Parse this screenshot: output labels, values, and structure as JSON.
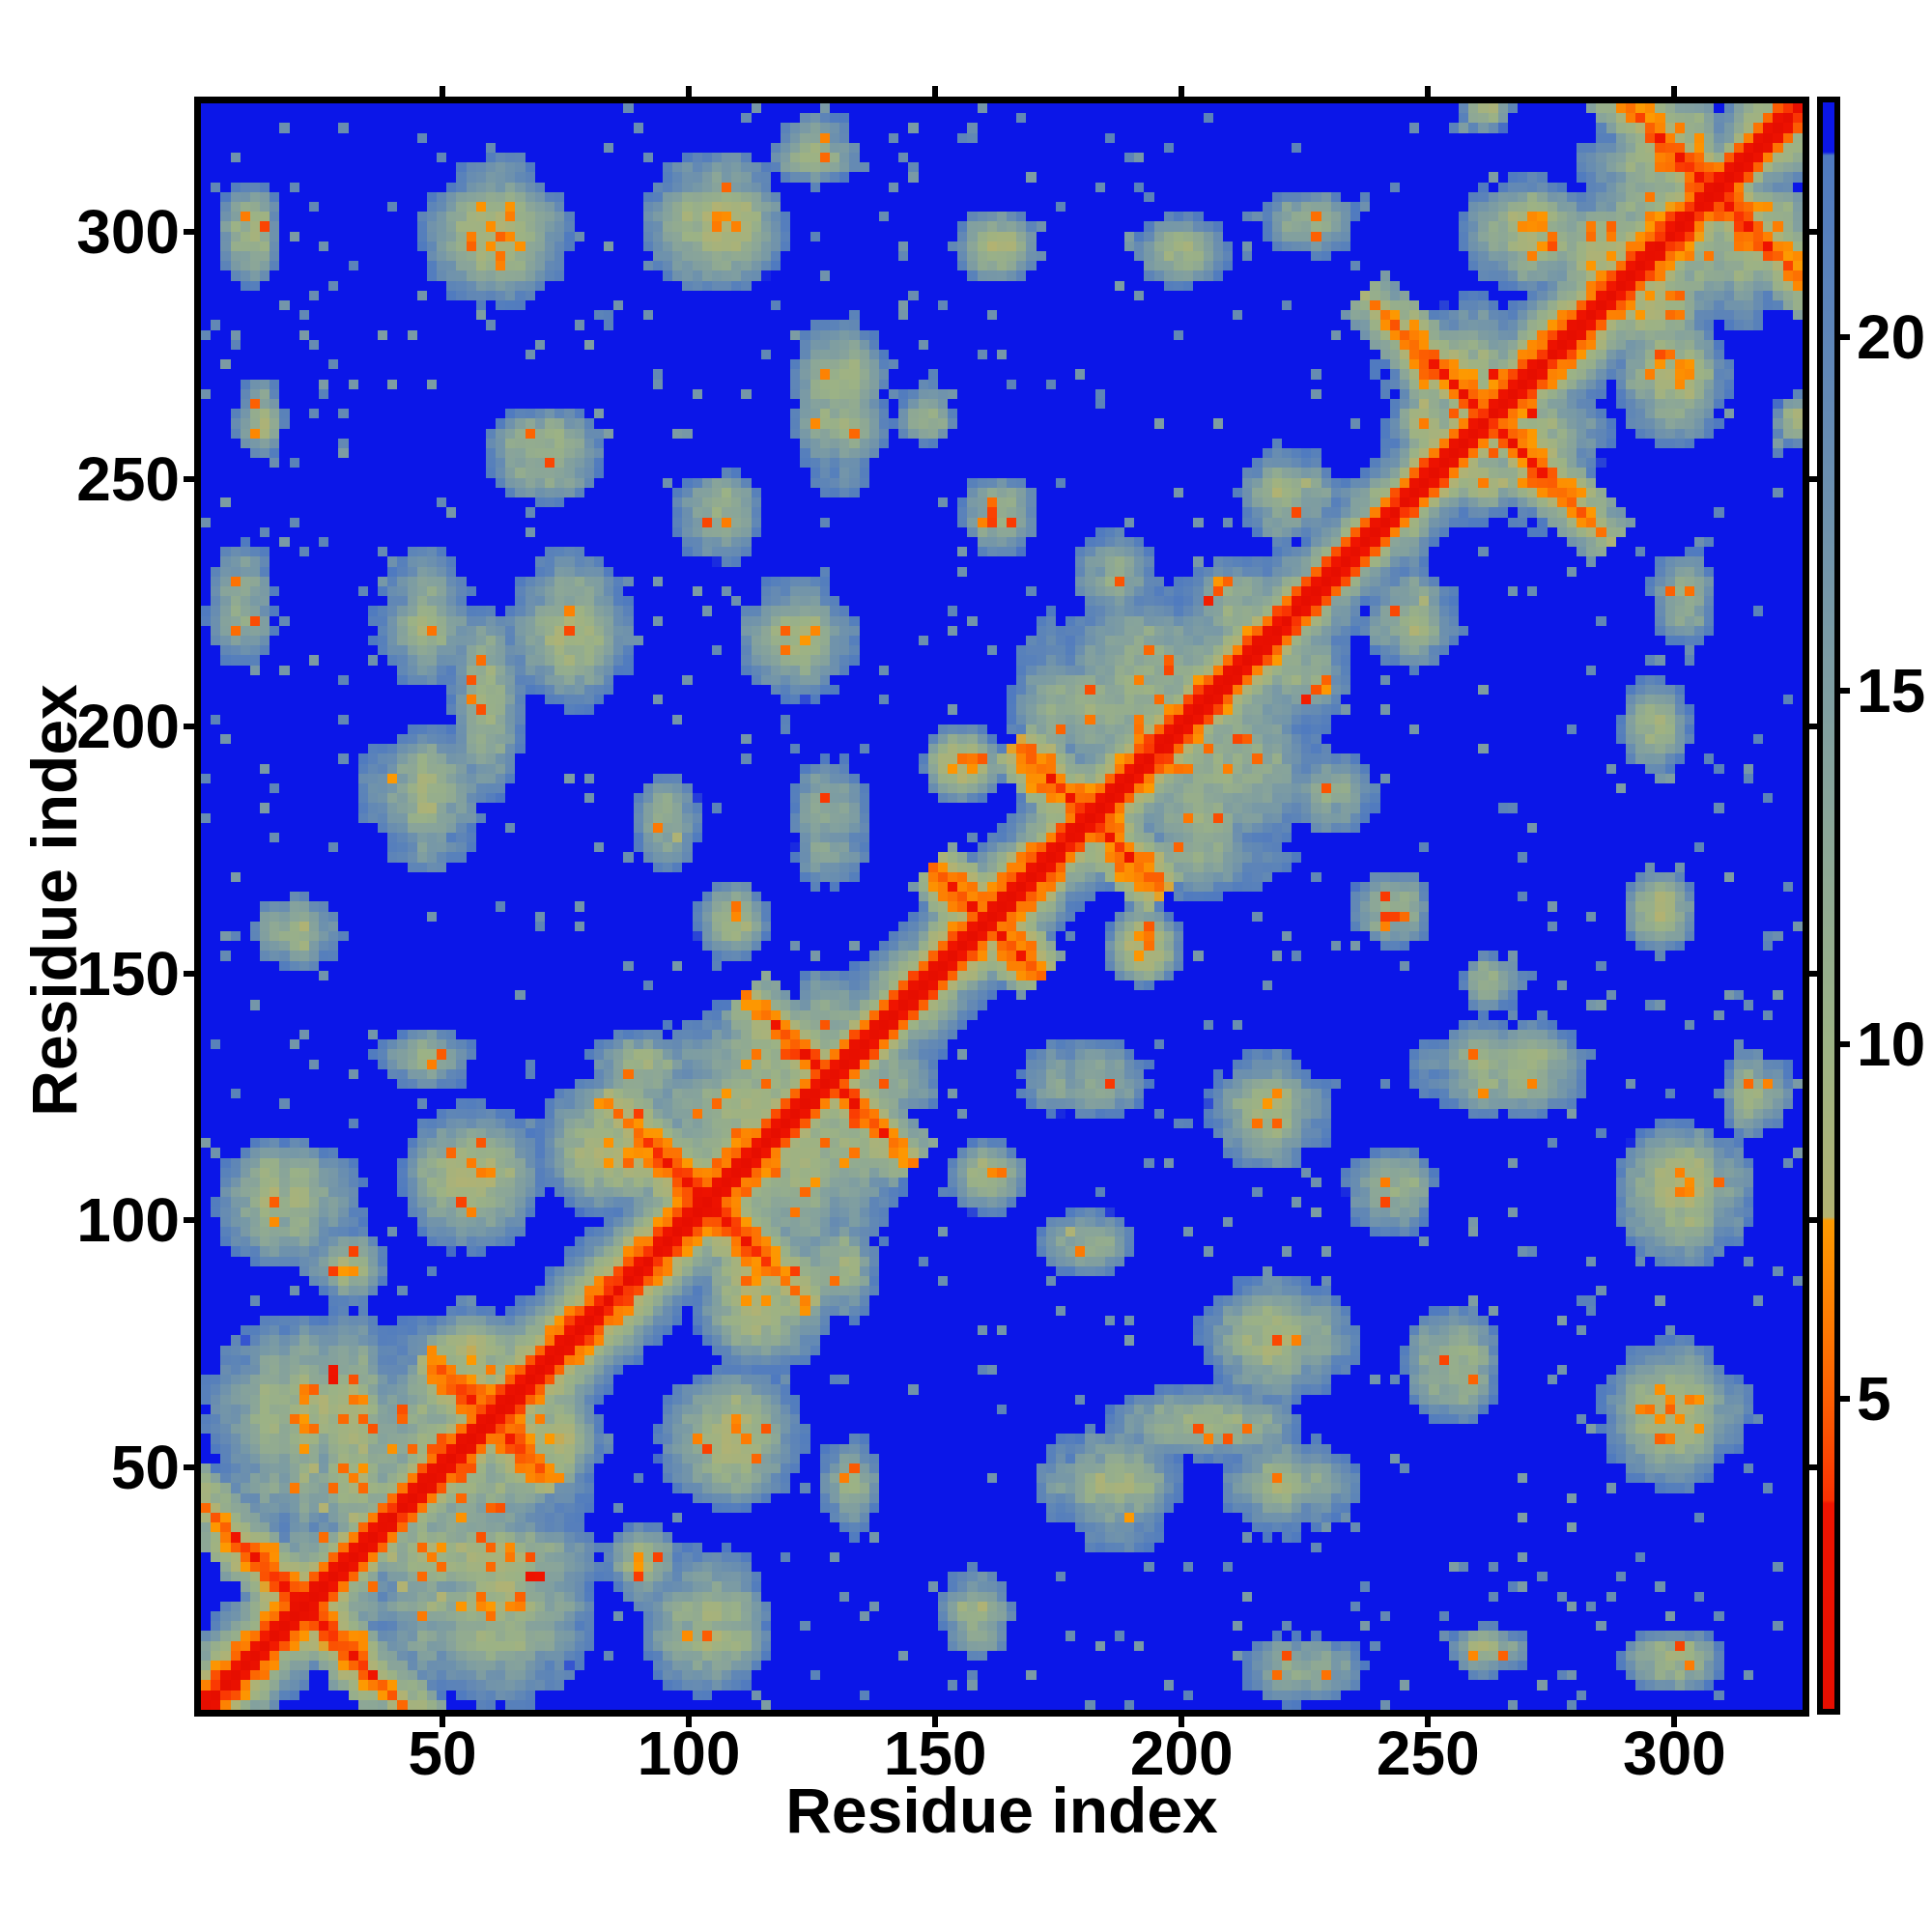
{
  "figure": {
    "background": "#ffffff",
    "kind": "protein residue-residue distance map"
  },
  "chart_data": {
    "type": "heatmap",
    "title": "",
    "xlabel": "Residue index",
    "ylabel": "Residue index",
    "x_range": [
      1,
      326
    ],
    "y_range": [
      1,
      326
    ],
    "x_ticks": [
      50,
      100,
      150,
      200,
      250,
      300
    ],
    "y_ticks": [
      50,
      100,
      150,
      200,
      250,
      300
    ],
    "grid": false,
    "legend_position": "right-colorbar",
    "n_residues": 326,
    "bin_residues": 2,
    "matrix_symmetric": true,
    "diagonal_value": 0,
    "distance_slope_per_residue": 1.3,
    "value_range": [
      0.6,
      23.3
    ],
    "colorbar_ticks": [
      5,
      10,
      15,
      20
    ],
    "palette_stops": [
      {
        "v": 23.3,
        "c": "#0b16e8"
      },
      {
        "v": 22.6,
        "c": "#0b16e8"
      },
      {
        "v": 22.55,
        "c": "#4f7ac0"
      },
      {
        "v": 19.0,
        "c": "#6389b4"
      },
      {
        "v": 16.0,
        "c": "#7899a6"
      },
      {
        "v": 13.0,
        "c": "#8ba698"
      },
      {
        "v": 10.0,
        "c": "#9cb285"
      },
      {
        "v": 7.55,
        "c": "#b2b272"
      },
      {
        "v": 7.5,
        "c": "#fd9a01"
      },
      {
        "v": 6.0,
        "c": "#fd7a02"
      },
      {
        "v": 4.5,
        "c": "#fb5102"
      },
      {
        "v": 3.55,
        "c": "#f93102"
      },
      {
        "v": 3.5,
        "c": "#f01400"
      },
      {
        "v": 0.6,
        "c": "#e60e00"
      }
    ],
    "noise_seed": 42,
    "hairpin_antidiagonal_streaks": [
      {
        "center": 21,
        "half_len": 26
      },
      {
        "center": 59,
        "half_len": 14
      },
      {
        "center": 103,
        "half_len": 22
      },
      {
        "center": 128,
        "half_len": 18
      },
      {
        "center": 160,
        "half_len": 12
      },
      {
        "center": 181,
        "half_len": 16
      },
      {
        "center": 262,
        "half_len": 26
      },
      {
        "center": 308,
        "half_len": 24
      }
    ],
    "contact_clusters": [
      {
        "x": 35,
        "y": 48,
        "rx": 34,
        "ry": 34,
        "d": 9.5
      },
      {
        "x": 25,
        "y": 60,
        "rx": 26,
        "ry": 22,
        "d": 8.5
      },
      {
        "x": 55,
        "y": 72,
        "rx": 12,
        "ry": 10,
        "d": 8.0
      },
      {
        "x": 30,
        "y": 90,
        "rx": 10,
        "ry": 8,
        "d": 9.5
      },
      {
        "x": 18,
        "y": 103,
        "rx": 16,
        "ry": 14,
        "d": 9.0
      },
      {
        "x": 55,
        "y": 108,
        "rx": 16,
        "ry": 16,
        "d": 9.0
      },
      {
        "x": 85,
        "y": 115,
        "rx": 18,
        "ry": 16,
        "d": 8.5
      },
      {
        "x": 112,
        "y": 120,
        "rx": 26,
        "ry": 26,
        "d": 10.0
      },
      {
        "x": 117,
        "y": 130,
        "rx": 14,
        "ry": 10,
        "d": 8.5
      },
      {
        "x": 45,
        "y": 132,
        "rx": 12,
        "ry": 7,
        "d": 10.0
      },
      {
        "x": 90,
        "y": 130,
        "rx": 12,
        "ry": 8,
        "d": 9.5
      },
      {
        "x": 128,
        "y": 142,
        "rx": 9,
        "ry": 9,
        "d": 9.0
      },
      {
        "x": 20,
        "y": 158,
        "rx": 10,
        "ry": 8,
        "d": 10.0
      },
      {
        "x": 108,
        "y": 160,
        "rx": 8,
        "ry": 8,
        "d": 10.0
      },
      {
        "x": 95,
        "y": 180,
        "rx": 8,
        "ry": 10,
        "d": 10.0
      },
      {
        "x": 128,
        "y": 180,
        "rx": 9,
        "ry": 14,
        "d": 10.0
      },
      {
        "x": 45,
        "y": 185,
        "rx": 14,
        "ry": 16,
        "d": 9.5
      },
      {
        "x": 155,
        "y": 192,
        "rx": 9,
        "ry": 9,
        "d": 7.5
      },
      {
        "x": 180,
        "y": 203,
        "rx": 16,
        "ry": 14,
        "d": 8.5
      },
      {
        "x": 195,
        "y": 205,
        "rx": 30,
        "ry": 28,
        "d": 11.0
      },
      {
        "x": 58,
        "y": 205,
        "rx": 8,
        "ry": 22,
        "d": 9.5
      },
      {
        "x": 122,
        "y": 218,
        "rx": 13,
        "ry": 15,
        "d": 9.0
      },
      {
        "x": 75,
        "y": 220,
        "rx": 14,
        "ry": 18,
        "d": 9.0
      },
      {
        "x": 45,
        "y": 222,
        "rx": 12,
        "ry": 16,
        "d": 9.5
      },
      {
        "x": 8,
        "y": 225,
        "rx": 8,
        "ry": 14,
        "d": 10.0
      },
      {
        "x": 210,
        "y": 225,
        "rx": 12,
        "ry": 10,
        "d": 9.0
      },
      {
        "x": 185,
        "y": 230,
        "rx": 10,
        "ry": 11,
        "d": 9.5
      },
      {
        "x": 105,
        "y": 242,
        "rx": 10,
        "ry": 10,
        "d": 9.5
      },
      {
        "x": 162,
        "y": 242,
        "rx": 9,
        "ry": 9,
        "d": 9.5
      },
      {
        "x": 222,
        "y": 246,
        "rx": 12,
        "ry": 12,
        "d": 9.0
      },
      {
        "x": 70,
        "y": 255,
        "rx": 13,
        "ry": 11,
        "d": 9.5
      },
      {
        "x": 12,
        "y": 262,
        "rx": 6,
        "ry": 9,
        "d": 10.5
      },
      {
        "x": 250,
        "y": 262,
        "rx": 10,
        "ry": 10,
        "d": 8.5
      },
      {
        "x": 147,
        "y": 263,
        "rx": 7,
        "ry": 7,
        "d": 9.5
      },
      {
        "x": 130,
        "y": 265,
        "rx": 11,
        "ry": 20,
        "d": 8.5
      },
      {
        "x": 260,
        "y": 268,
        "rx": 22,
        "ry": 20,
        "d": 10.5
      },
      {
        "x": 285,
        "y": 296,
        "rx": 12,
        "ry": 12,
        "d": 8.5
      },
      {
        "x": 162,
        "y": 297,
        "rx": 9,
        "ry": 8,
        "d": 9.5
      },
      {
        "x": 200,
        "y": 296,
        "rx": 10,
        "ry": 8,
        "d": 9.5
      },
      {
        "x": 60,
        "y": 300,
        "rx": 16,
        "ry": 16,
        "d": 8.5
      },
      {
        "x": 10,
        "y": 300,
        "rx": 7,
        "ry": 12,
        "d": 10.0
      },
      {
        "x": 270,
        "y": 300,
        "rx": 14,
        "ry": 13,
        "d": 8.5
      },
      {
        "x": 105,
        "y": 302,
        "rx": 16,
        "ry": 15,
        "d": 8.5
      },
      {
        "x": 226,
        "y": 302,
        "rx": 10,
        "ry": 8,
        "d": 9.5
      },
      {
        "x": 300,
        "y": 310,
        "rx": 22,
        "ry": 18,
        "d": 9.5
      },
      {
        "x": 125,
        "y": 316,
        "rx": 10,
        "ry": 9,
        "d": 9.0
      },
      {
        "x": 302,
        "y": 318,
        "rx": 13,
        "ry": 10,
        "d": 7.5
      },
      {
        "x": 262,
        "y": 325,
        "rx": 6,
        "ry": 6,
        "d": 9.0
      }
    ],
    "series_note": "Symmetric residue-residue distance matrix: red diagonal (short distances), orange near-diagonal band, sage/grey long-range contact clusters listed above, blue background (distance beyond ~22.5). Clusters are mirrored across the diagonal."
  }
}
